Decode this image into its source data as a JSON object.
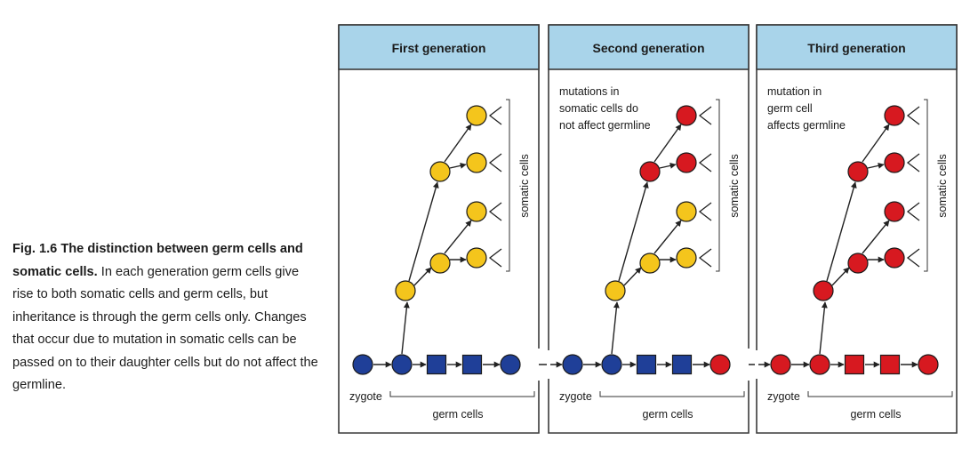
{
  "caption": {
    "figure_label": "Fig. 1.6",
    "title": "The distinction between germ cells and somatic cells.",
    "body": "In each generation germ cells give rise to both somatic cells and germ cells, but inheritance is through the germ cells only. Changes that occur due to mutation in somatic cells can be passed on to their daughter cells but do not affect the germline."
  },
  "panels": [
    {
      "title": "First generation",
      "note": [],
      "somatic_label": "somatic cells",
      "zygote_label": "zygote",
      "germ_label": "germ cells",
      "germline": [
        "circle",
        "circle",
        "square",
        "square",
        "circle"
      ],
      "germline_colors": [
        "blue",
        "blue",
        "blue",
        "blue",
        "blue"
      ],
      "somatic_colors": [
        "yellow",
        "yellow",
        "yellow",
        "yellow",
        "yellow",
        "yellow",
        "yellow"
      ]
    },
    {
      "title": "Second generation",
      "note": [
        "mutations in",
        "somatic cells do",
        "not affect germline"
      ],
      "somatic_label": "somatic cells",
      "zygote_label": "zygote",
      "germ_label": "germ cells",
      "germline": [
        "circle",
        "circle",
        "square",
        "square",
        "circle"
      ],
      "germline_colors": [
        "blue",
        "blue",
        "blue",
        "blue",
        "red"
      ],
      "somatic_colors": [
        "yellow",
        "red",
        "yellow",
        "red",
        "red",
        "yellow",
        "yellow"
      ]
    },
    {
      "title": "Third generation",
      "note": [
        "mutation in",
        "germ cell",
        "affects germline"
      ],
      "somatic_label": "somatic cells",
      "zygote_label": "zygote",
      "germ_label": "germ cells",
      "germline": [
        "circle",
        "circle",
        "square",
        "square",
        "circle"
      ],
      "germline_colors": [
        "red",
        "red",
        "red",
        "red",
        "red"
      ],
      "somatic_colors": [
        "red",
        "red",
        "red",
        "red",
        "red",
        "red",
        "red"
      ]
    }
  ],
  "colors": {
    "blue": "#1f3f98",
    "red": "#d71920",
    "yellow": "#f4c51c",
    "header_bg": "#a9d4ea",
    "panel_border": "#3a3a3a"
  }
}
